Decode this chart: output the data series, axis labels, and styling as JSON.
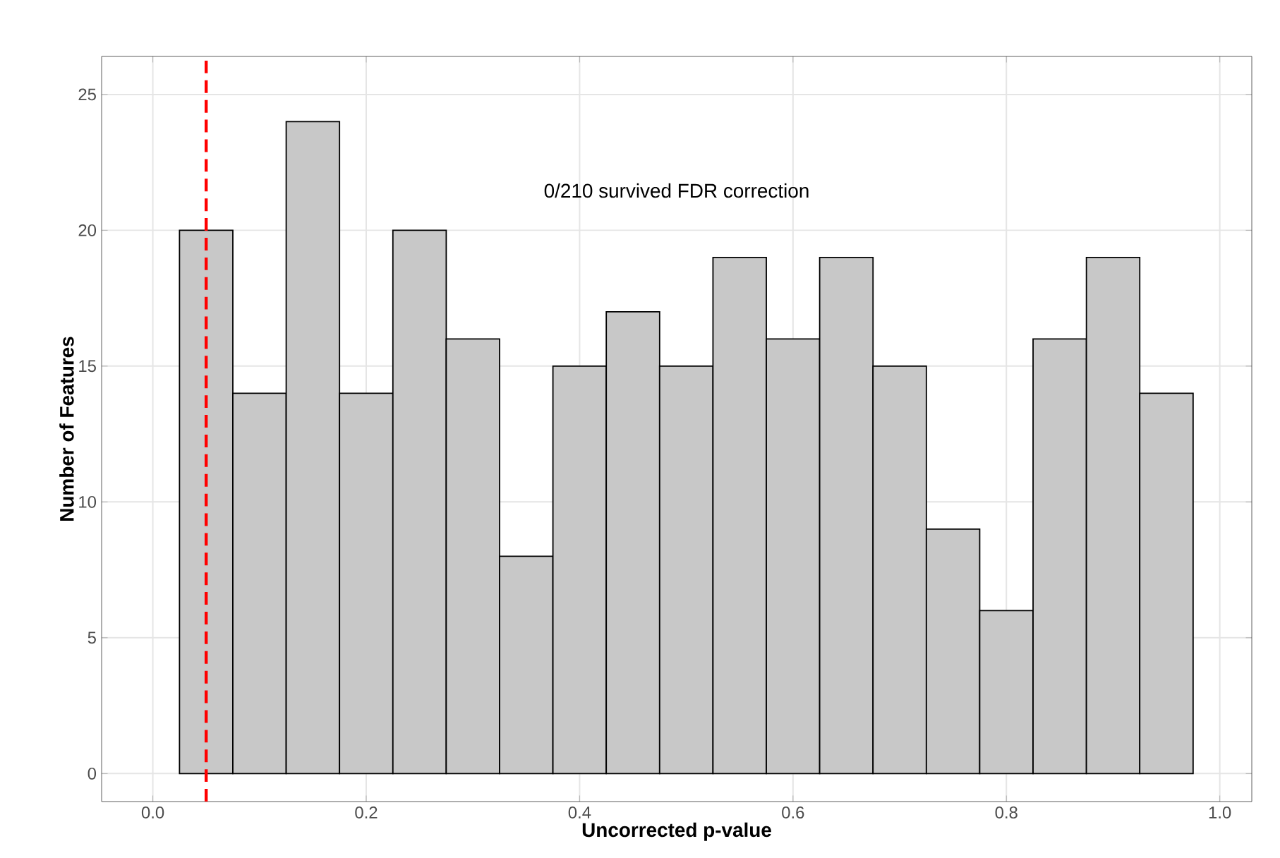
{
  "chart_data": {
    "type": "histogram",
    "xlabel": "Uncorrected p-value",
    "ylabel": "Number of Features",
    "bins": [
      0.025,
      0.075,
      0.125,
      0.175,
      0.225,
      0.275,
      0.325,
      0.375,
      0.425,
      0.475,
      0.525,
      0.575,
      0.625,
      0.675,
      0.725,
      0.775,
      0.825,
      0.875,
      0.925,
      0.975
    ],
    "values": [
      20,
      14,
      24,
      14,
      20,
      16,
      8,
      15,
      17,
      15,
      19,
      16,
      19,
      15,
      9,
      6,
      16,
      19,
      14
    ],
    "color": "#c8c8c8",
    "xlim": [
      -0.048,
      1.03
    ],
    "ylim": [
      -1.03,
      26.4
    ],
    "xticks": [
      {
        "value": 0,
        "label": "0.0"
      },
      {
        "value": 0.2,
        "label": "0.2"
      },
      {
        "value": 0.4,
        "label": "0.4"
      },
      {
        "value": 0.6,
        "label": "0.6"
      },
      {
        "value": 0.8,
        "label": "0.8"
      },
      {
        "value": 1,
        "label": "1.0"
      }
    ],
    "yticks": [
      0,
      5,
      10,
      15,
      20,
      25
    ],
    "grid": true,
    "ref_lines": [
      {
        "axis": "x",
        "value": 0.05,
        "color": "#ff0000",
        "line_style": "dashed"
      }
    ],
    "annotations": [
      "0/210 survived FDR correction"
    ]
  }
}
